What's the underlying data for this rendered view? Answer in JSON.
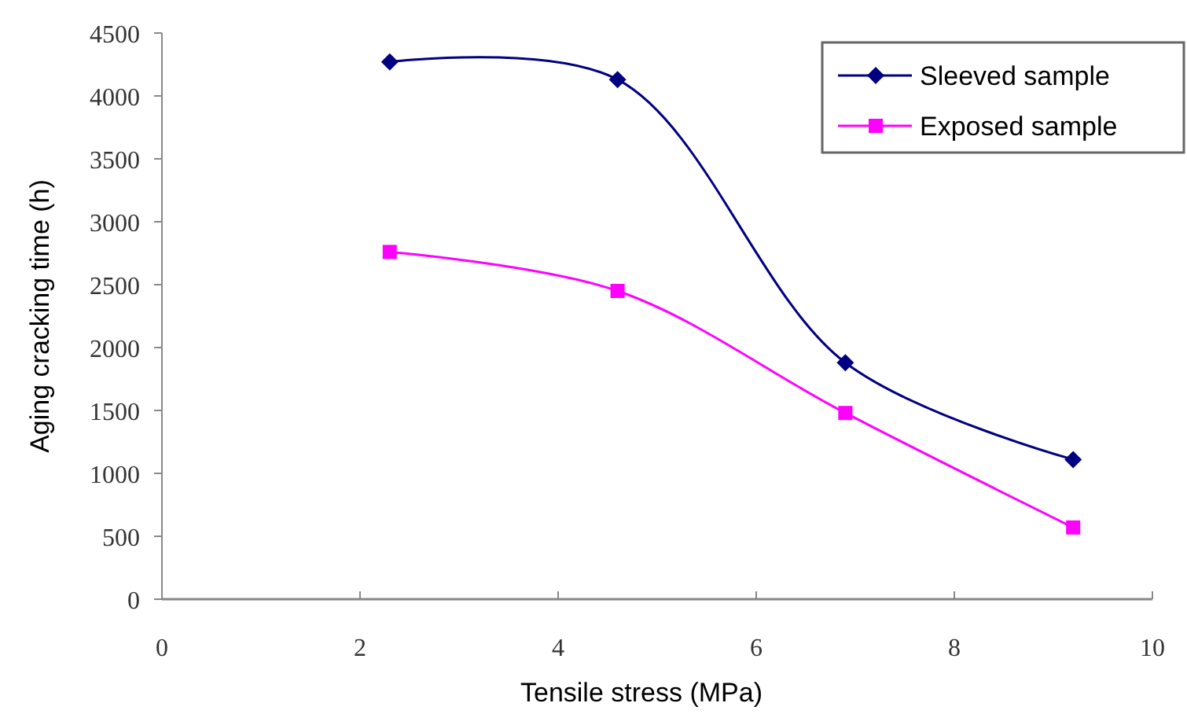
{
  "chart_data": {
    "type": "line",
    "xlabel": "Tensile stress (MPa)",
    "ylabel": "Aging cracking time (h)",
    "x": [
      2.3,
      4.6,
      6.9,
      9.2
    ],
    "series": [
      {
        "name": "Sleeved sample",
        "color": "#000080",
        "marker": "diamond",
        "values": [
          4270,
          4130,
          1880,
          1110
        ]
      },
      {
        "name": "Exposed sample",
        "color": "#ff00ff",
        "marker": "square",
        "values": [
          2760,
          2450,
          1480,
          570
        ]
      }
    ],
    "xlim": [
      0,
      10
    ],
    "xticks": [
      0,
      2,
      4,
      6,
      8,
      10
    ],
    "ylim": [
      0,
      4500
    ],
    "yticks": [
      0,
      500,
      1000,
      1500,
      2000,
      2500,
      3000,
      3500,
      4000,
      4500
    ],
    "grid": false,
    "legend": "top right",
    "line_style": "solid"
  }
}
